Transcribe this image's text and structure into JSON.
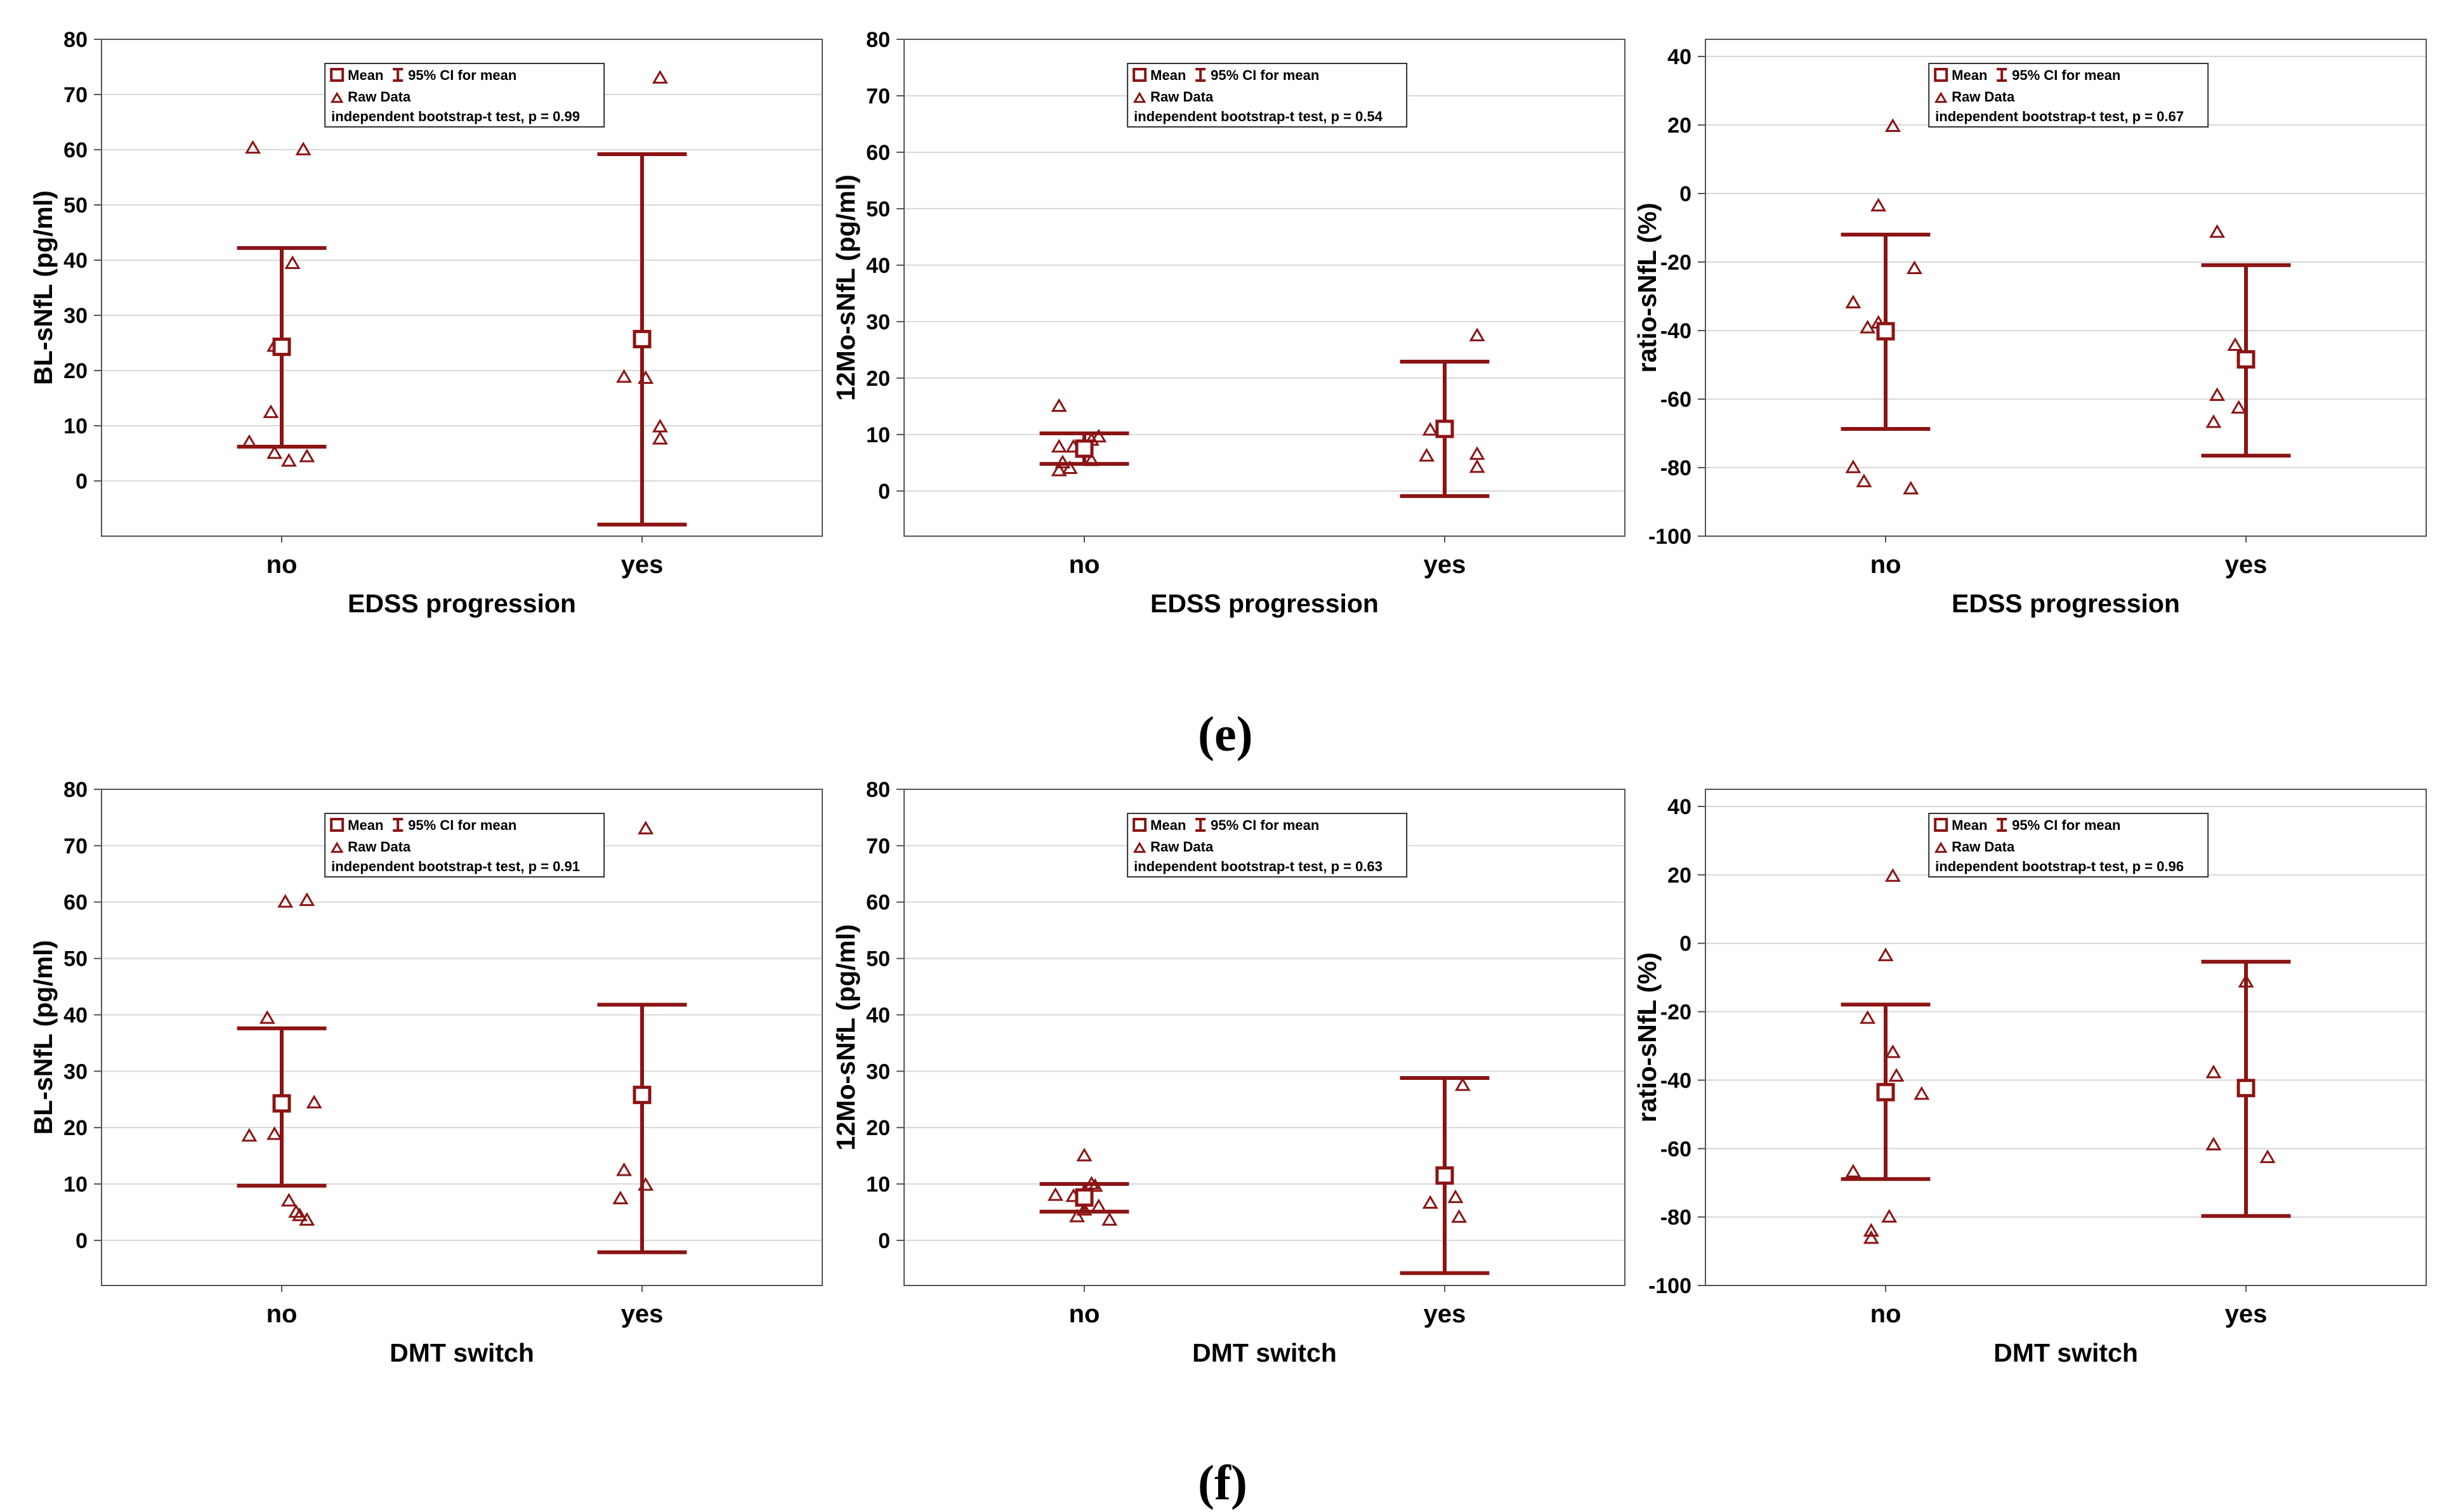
{
  "panel_labels": [
    "(e)",
    "(f)"
  ],
  "colors": {
    "series": "#8b1414",
    "grid": "#d8d8d8",
    "axis": "#555555",
    "text": "#000000"
  },
  "legend": {
    "mean": "Mean",
    "ci": "95% CI for mean",
    "raw": "Raw Data"
  },
  "chart_data": [
    {
      "type": "scatter",
      "panel": "e",
      "ylabel": "BL-sNfL (pg/ml)",
      "xlabel": "EDSS progression",
      "categories": [
        "no",
        "yes"
      ],
      "ylim": [
        -10,
        80
      ],
      "yticks": [
        0,
        10,
        20,
        30,
        40,
        50,
        60,
        70,
        80
      ],
      "test": "independent bootstrap-t test, p = 0.99",
      "legend_position": "top-center",
      "groups": [
        {
          "mean": 24.3,
          "ci": [
            6.2,
            42.2
          ],
          "raw": [
            [
              -0.08,
              60.3
            ],
            [
              0.06,
              60.0
            ],
            [
              0.03,
              39.4
            ],
            [
              -0.02,
              24.4
            ],
            [
              -0.03,
              12.4
            ],
            [
              -0.09,
              7.0
            ],
            [
              -0.02,
              5.0
            ],
            [
              0.02,
              3.6
            ],
            [
              0.07,
              4.4
            ]
          ]
        },
        {
          "mean": 25.7,
          "ci": [
            -7.9,
            59.2
          ],
          "raw": [
            [
              0.05,
              73.0
            ],
            [
              -0.05,
              18.8
            ],
            [
              0.01,
              18.6
            ],
            [
              0.05,
              9.8
            ],
            [
              0.05,
              7.6
            ]
          ]
        }
      ]
    },
    {
      "type": "scatter",
      "panel": "e",
      "ylabel": "12Mo-sNfL (pg/ml)",
      "xlabel": "EDSS progression",
      "categories": [
        "no",
        "yes"
      ],
      "ylim": [
        -8,
        80
      ],
      "yticks": [
        0,
        10,
        20,
        30,
        40,
        50,
        60,
        70,
        80
      ],
      "test": "independent bootstrap-t test, p = 0.54",
      "legend_position": "top-center",
      "groups": [
        {
          "mean": 7.5,
          "ci": [
            4.8,
            10.2
          ],
          "raw": [
            [
              -0.07,
              15.0
            ],
            [
              -0.07,
              7.8
            ],
            [
              -0.03,
              7.8
            ],
            [
              0.02,
              9.0
            ],
            [
              0.04,
              9.6
            ],
            [
              -0.06,
              5.0
            ],
            [
              -0.04,
              4.0
            ],
            [
              -0.07,
              3.6
            ],
            [
              0.02,
              5.4
            ]
          ]
        },
        {
          "mean": 11.0,
          "ci": [
            -0.9,
            22.9
          ],
          "raw": [
            [
              0.09,
              27.5
            ],
            [
              -0.04,
              10.8
            ],
            [
              -0.05,
              6.2
            ],
            [
              0.09,
              6.5
            ],
            [
              0.09,
              4.2
            ]
          ]
        }
      ]
    },
    {
      "type": "scatter",
      "panel": "e",
      "ylabel": "ratio-sNfL (%)",
      "xlabel": "EDSS progression",
      "categories": [
        "no",
        "yes"
      ],
      "ylim": [
        -100,
        45
      ],
      "yticks": [
        -100,
        -80,
        -60,
        -40,
        -20,
        0,
        20,
        40
      ],
      "test": "independent bootstrap-t test, p = 0.67",
      "legend_position": "top-center",
      "groups": [
        {
          "mean": -40.2,
          "ci": [
            -68.7,
            -12.0
          ],
          "raw": [
            [
              0.02,
              19.6
            ],
            [
              -0.02,
              -3.6
            ],
            [
              0.08,
              -21.9
            ],
            [
              -0.09,
              -31.9
            ],
            [
              -0.05,
              -39.2
            ],
            [
              -0.02,
              -37.8
            ],
            [
              -0.09,
              -80.0
            ],
            [
              -0.06,
              -84.1
            ],
            [
              0.07,
              -86.2
            ]
          ]
        },
        {
          "mean": -48.4,
          "ci": [
            -76.5,
            -20.9
          ],
          "raw": [
            [
              -0.08,
              -11.3
            ],
            [
              -0.03,
              -44.3
            ],
            [
              -0.08,
              -58.9
            ],
            [
              -0.02,
              -62.6
            ],
            [
              -0.09,
              -66.8
            ]
          ]
        }
      ]
    },
    {
      "type": "scatter",
      "panel": "f",
      "ylabel": "BL-sNfL (pg/ml)",
      "xlabel": "DMT switch",
      "categories": [
        "no",
        "yes"
      ],
      "ylim": [
        -8,
        80
      ],
      "yticks": [
        0,
        10,
        20,
        30,
        40,
        50,
        60,
        70,
        80
      ],
      "test": "independent bootstrap-t test, p = 0.91",
      "legend_position": "top-center",
      "groups": [
        {
          "mean": 24.3,
          "ci": [
            9.7,
            37.6
          ],
          "raw": [
            [
              0.01,
              60.0
            ],
            [
              0.07,
              60.3
            ],
            [
              -0.04,
              39.4
            ],
            [
              0.09,
              24.4
            ],
            [
              -0.09,
              18.5
            ],
            [
              -0.02,
              18.8
            ],
            [
              0.02,
              7.0
            ],
            [
              0.04,
              5.0
            ],
            [
              0.05,
              4.4
            ],
            [
              0.07,
              3.6
            ]
          ]
        },
        {
          "mean": 25.8,
          "ci": [
            -2.1,
            41.8
          ],
          "raw": [
            [
              0.01,
              73.0
            ],
            [
              -0.05,
              12.4
            ],
            [
              0.01,
              9.8
            ],
            [
              -0.06,
              7.4
            ]
          ]
        }
      ]
    },
    {
      "type": "scatter",
      "panel": "f",
      "ylabel": "12Mo-sNfL (pg/ml)",
      "xlabel": "DMT switch",
      "categories": [
        "no",
        "yes"
      ],
      "ylim": [
        -8,
        80
      ],
      "yticks": [
        0,
        10,
        20,
        30,
        40,
        50,
        60,
        70,
        80
      ],
      "test": "independent bootstrap-t test, p = 0.63",
      "legend_position": "top-center",
      "groups": [
        {
          "mean": 7.6,
          "ci": [
            5.1,
            10.0
          ],
          "raw": [
            [
              0.0,
              15.0
            ],
            [
              0.02,
              10.0
            ],
            [
              0.03,
              9.6
            ],
            [
              -0.08,
              8.0
            ],
            [
              -0.03,
              7.8
            ],
            [
              0.0,
              5.4
            ],
            [
              0.04,
              6.0
            ],
            [
              -0.02,
              4.2
            ],
            [
              0.07,
              3.6
            ]
          ]
        },
        {
          "mean": 11.5,
          "ci": [
            -5.8,
            28.8
          ],
          "raw": [
            [
              0.05,
              27.5
            ],
            [
              0.03,
              7.6
            ],
            [
              -0.04,
              6.6
            ],
            [
              0.04,
              4.1
            ]
          ]
        }
      ]
    },
    {
      "type": "scatter",
      "panel": "f",
      "ylabel": "ratio-sNfL (%)",
      "xlabel": "DMT switch",
      "categories": [
        "no",
        "yes"
      ],
      "ylim": [
        -100,
        45
      ],
      "yticks": [
        -100,
        -80,
        -60,
        -40,
        -20,
        0,
        20,
        40
      ],
      "test": "independent bootstrap-t test, p = 0.96",
      "legend_position": "top-center",
      "groups": [
        {
          "mean": -43.5,
          "ci": [
            -68.9,
            -17.9
          ],
          "raw": [
            [
              0.02,
              19.6
            ],
            [
              0.0,
              -3.6
            ],
            [
              -0.05,
              -21.9
            ],
            [
              0.02,
              -31.9
            ],
            [
              0.03,
              -38.8
            ],
            [
              0.1,
              -44.1
            ],
            [
              -0.09,
              -66.8
            ],
            [
              0.01,
              -80.0
            ],
            [
              -0.04,
              -84.1
            ],
            [
              -0.04,
              -86.2
            ]
          ]
        },
        {
          "mean": -42.3,
          "ci": [
            -79.7,
            -5.4
          ],
          "raw": [
            [
              -0.09,
              -37.8
            ],
            [
              0.0,
              -11.3
            ],
            [
              -0.09,
              -58.9
            ],
            [
              0.06,
              -62.6
            ]
          ]
        }
      ]
    }
  ]
}
